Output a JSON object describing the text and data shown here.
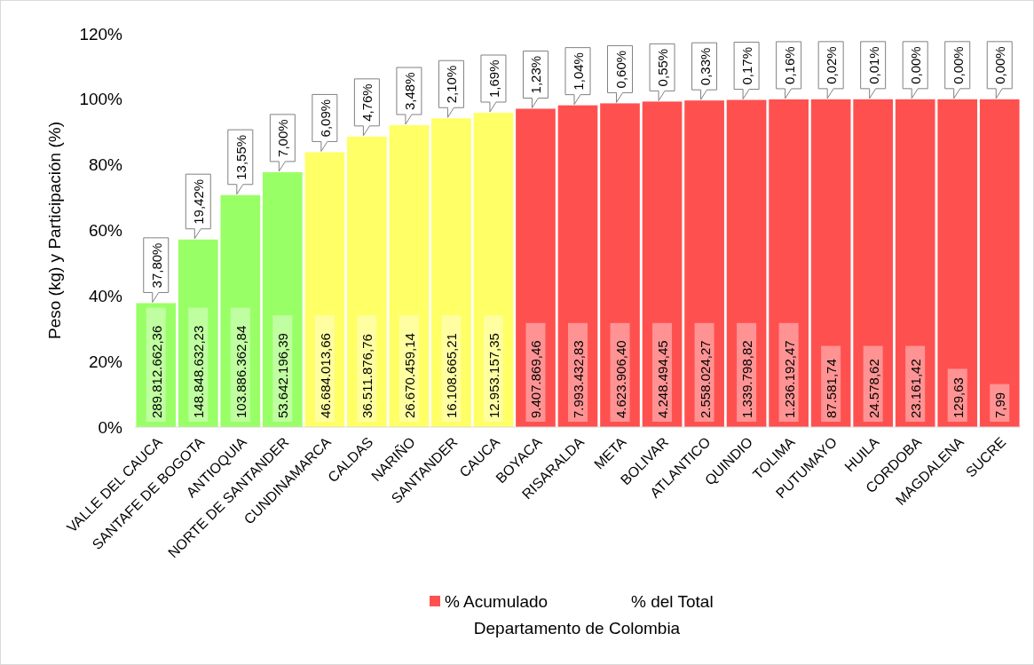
{
  "chart_data": {
    "type": "bar",
    "xlabel": "Departamento de Colombia",
    "ylabel": "Peso (kg) y Participación (%)",
    "categories": [
      "VALLE DEL CAUCA",
      "SANTAFE DE BOGOTA",
      "ANTIOQUIA",
      "NORTE DE SANTANDER",
      "CUNDINAMARCA",
      "CALDAS",
      "NARIÑO",
      "SANTANDER",
      "CAUCA",
      "BOYACA",
      "RISARALDA",
      "META",
      "BOLIVAR",
      "ATLANTICO",
      "QUINDIO",
      "TOLIMA",
      "PUTUMAYO",
      "HUILA",
      "CORDOBA",
      "MAGDALENA",
      "SUCRE"
    ],
    "series": [
      {
        "name": "% Acumulado",
        "color": "#ff5050",
        "colors": [
          "#99ff66",
          "#99ff66",
          "#99ff66",
          "#99ff66",
          "#ffff66",
          "#ffff66",
          "#ffff66",
          "#ffff66",
          "#ffff66",
          "#ff5050",
          "#ff5050",
          "#ff5050",
          "#ff5050",
          "#ff5050",
          "#ff5050",
          "#ff5050",
          "#ff5050",
          "#ff5050",
          "#ff5050",
          "#ff5050",
          "#ff5050"
        ],
        "values": [
          37.8,
          57.22,
          70.77,
          77.77,
          83.86,
          88.62,
          92.1,
          94.2,
          95.89,
          97.12,
          98.16,
          98.76,
          99.31,
          99.64,
          99.81,
          99.97,
          99.99,
          100,
          100,
          100,
          100
        ]
      }
    ],
    "ylim": [
      0,
      120
    ],
    "yticks": [
      {
        "value": 0,
        "label": "0%"
      },
      {
        "value": 20,
        "label": "20%"
      },
      {
        "value": 40,
        "label": "40%"
      },
      {
        "value": 60,
        "label": "60%"
      },
      {
        "value": 80,
        "label": "80%"
      },
      {
        "value": 100,
        "label": "100%"
      },
      {
        "value": 120,
        "label": "120%"
      }
    ],
    "annotations": [
      {
        "text": "37,80%",
        "x": "VALLE DEL CAUCA",
        "y": 37.8
      },
      {
        "text": "19,42%",
        "x": "SANTAFE DE BOGOTA",
        "y": 57.22
      },
      {
        "text": "13,55%",
        "x": "ANTIOQUIA",
        "y": 70.77
      },
      {
        "text": "7,00%",
        "x": "NORTE DE SANTANDER",
        "y": 77.77
      },
      {
        "text": "6,09%",
        "x": "CUNDINAMARCA",
        "y": 83.86
      },
      {
        "text": "4,76%",
        "x": "CALDAS",
        "y": 88.62
      },
      {
        "text": "3,48%",
        "x": "NARIÑO",
        "y": 92.1
      },
      {
        "text": "2,10%",
        "x": "SANTANDER",
        "y": 94.2
      },
      {
        "text": "1,69%",
        "x": "CAUCA",
        "y": 95.89
      },
      {
        "text": "1,23%",
        "x": "BOYACA",
        "y": 97.12
      },
      {
        "text": "1,04%",
        "x": "RISARALDA",
        "y": 98.16
      },
      {
        "text": "0,60%",
        "x": "META",
        "y": 98.76
      },
      {
        "text": "0,55%",
        "x": "BOLIVAR",
        "y": 99.31
      },
      {
        "text": "0,33%",
        "x": "ATLANTICO",
        "y": 99.64
      },
      {
        "text": "0,17%",
        "x": "QUINDIO",
        "y": 99.81
      },
      {
        "text": "0,16%",
        "x": "TOLIMA",
        "y": 99.97
      },
      {
        "text": "0,02%",
        "x": "PUTUMAYO",
        "y": 99.99
      },
      {
        "text": "0,01%",
        "x": "HUILA",
        "y": 100
      },
      {
        "text": "0,00%",
        "x": "CORDOBA",
        "y": 100
      },
      {
        "text": "0,00%",
        "x": "MAGDALENA",
        "y": 100
      },
      {
        "text": "0,00%",
        "x": "SUCRE",
        "y": 100
      },
      "289.812.662,36",
      "148.848.632,23",
      "103.886.362,84",
      "53.642.196,39",
      "46.684.013,66",
      "36.511.876,76",
      "26.670.459,14",
      "16.108.665,21",
      "12.953.157,35",
      "9.407.869,46",
      "7.993.432,83",
      "4.623.906,40",
      "4.248.494,45",
      "2.558.024,27",
      "1.339.798,82",
      "1.236.192,47",
      "87.581,74",
      "24.578,62",
      "23.161,42",
      "129,63",
      "7,99",
      "% del Total"
    ],
    "grid": false,
    "legend": "bottom"
  }
}
